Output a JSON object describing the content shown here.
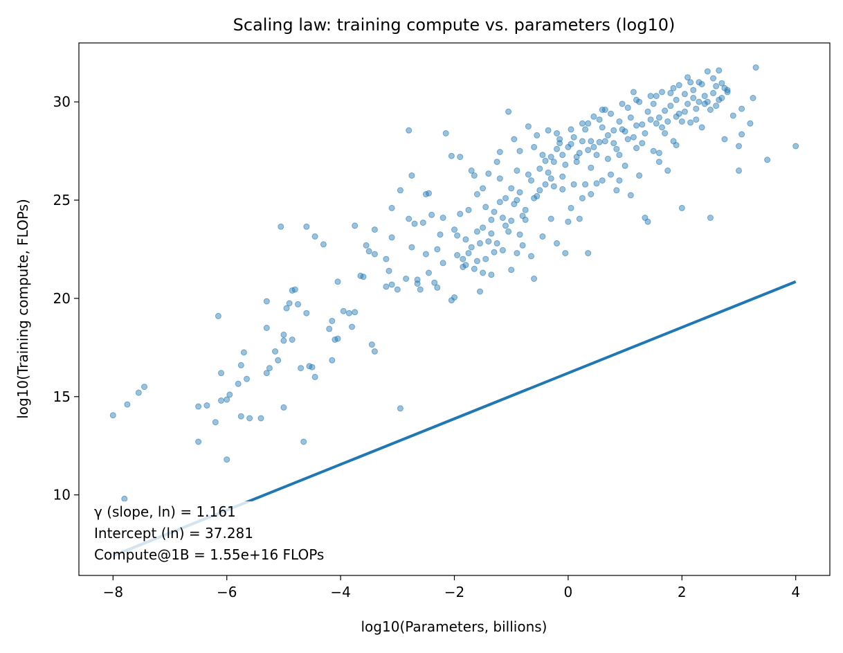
{
  "chart_data": {
    "type": "scatter",
    "title": "Scaling law: training compute vs. parameters (log10)",
    "xlabel": "log10(Parameters, billions)",
    "ylabel": "log10(Training compute, FLOPs)",
    "xlim": [
      -8.6,
      4.6
    ],
    "ylim": [
      5.9,
      33.0
    ],
    "xticks": [
      -8,
      -6,
      -4,
      -2,
      0,
      2,
      4
    ],
    "yticks": [
      10,
      15,
      20,
      25,
      30
    ],
    "xtick_labels": [
      "−8",
      "−6",
      "−4",
      "−2",
      "0",
      "2",
      "4"
    ],
    "ytick_labels": [
      "10",
      "15",
      "20",
      "25",
      "30"
    ],
    "grid": false,
    "legend": "none",
    "point_color": "#1f77b4",
    "line_color": "#1f77b4",
    "fit_line": {
      "x": [
        -8.0,
        4.0
      ],
      "y": [
        6.9,
        20.85
      ]
    },
    "annotations": [
      "γ (slope, ln) = 1.161",
      "Intercept (ln) = 37.281",
      "Compute@1B = 1.55e+16 FLOPs"
    ],
    "points": [
      [
        -8.0,
        14.05
      ],
      [
        -7.75,
        14.6
      ],
      [
        -7.55,
        15.2
      ],
      [
        -7.45,
        15.5
      ],
      [
        -7.8,
        9.8
      ],
      [
        -6.5,
        14.5
      ],
      [
        -6.5,
        12.7
      ],
      [
        -6.35,
        14.55
      ],
      [
        -6.2,
        13.7
      ],
      [
        -6.1,
        14.8
      ],
      [
        -6.0,
        14.85
      ],
      [
        -6.0,
        11.8
      ],
      [
        -5.95,
        15.1
      ],
      [
        -6.1,
        16.2
      ],
      [
        -6.15,
        19.1
      ],
      [
        -5.8,
        15.65
      ],
      [
        -5.75,
        16.6
      ],
      [
        -5.7,
        17.25
      ],
      [
        -5.65,
        15.9
      ],
      [
        -5.6,
        13.9
      ],
      [
        -5.75,
        14.0
      ],
      [
        -5.4,
        13.9
      ],
      [
        -5.3,
        18.5
      ],
      [
        -5.3,
        16.2
      ],
      [
        -5.25,
        16.45
      ],
      [
        -5.3,
        19.85
      ],
      [
        -5.15,
        17.3
      ],
      [
        -5.1,
        16.85
      ],
      [
        -5.05,
        23.65
      ],
      [
        -5.0,
        18.15
      ],
      [
        -5.0,
        17.85
      ],
      [
        -4.95,
        19.5
      ],
      [
        -4.9,
        19.75
      ],
      [
        -4.85,
        20.4
      ],
      [
        -4.85,
        17.9
      ],
      [
        -4.8,
        20.45
      ],
      [
        -4.75,
        19.7
      ],
      [
        -5.0,
        14.45
      ],
      [
        -4.7,
        16.45
      ],
      [
        -4.65,
        12.7
      ],
      [
        -4.55,
        16.55
      ],
      [
        -4.5,
        16.5
      ],
      [
        -4.45,
        16.0
      ],
      [
        -4.6,
        19.25
      ],
      [
        -4.6,
        23.65
      ],
      [
        -4.45,
        23.15
      ],
      [
        -4.3,
        22.75
      ],
      [
        -4.2,
        18.45
      ],
      [
        -4.15,
        18.85
      ],
      [
        -4.1,
        17.9
      ],
      [
        -4.15,
        16.85
      ],
      [
        -4.05,
        17.95
      ],
      [
        -4.05,
        20.85
      ],
      [
        -3.95,
        19.35
      ],
      [
        -3.85,
        19.25
      ],
      [
        -3.8,
        18.55
      ],
      [
        -3.75,
        19.3
      ],
      [
        -3.75,
        23.7
      ],
      [
        -3.65,
        21.15
      ],
      [
        -3.6,
        21.1
      ],
      [
        -3.55,
        22.7
      ],
      [
        -3.5,
        22.4
      ],
      [
        -3.45,
        17.65
      ],
      [
        -3.4,
        17.3
      ],
      [
        -3.4,
        22.25
      ],
      [
        -3.4,
        23.5
      ],
      [
        -3.2,
        20.6
      ],
      [
        -3.2,
        22.0
      ],
      [
        -3.15,
        21.4
      ],
      [
        -3.1,
        20.7
      ],
      [
        -3.1,
        24.6
      ],
      [
        -3.1,
        23.1
      ],
      [
        -3.0,
        20.45
      ],
      [
        -2.95,
        25.5
      ],
      [
        -2.95,
        14.4
      ],
      [
        -2.85,
        21.0
      ],
      [
        -2.8,
        28.55
      ],
      [
        -2.8,
        24.05
      ],
      [
        -2.75,
        26.25
      ],
      [
        -2.75,
        22.6
      ],
      [
        -2.7,
        23.8
      ],
      [
        -2.65,
        20.75
      ],
      [
        -2.65,
        20.95
      ],
      [
        -2.6,
        20.45
      ],
      [
        -2.55,
        23.85
      ],
      [
        -2.5,
        25.3
      ],
      [
        -2.5,
        22.25
      ],
      [
        -2.45,
        25.35
      ],
      [
        -2.45,
        21.3
      ],
      [
        -2.4,
        24.25
      ],
      [
        -2.35,
        20.8
      ],
      [
        -2.3,
        20.55
      ],
      [
        -2.3,
        22.5
      ],
      [
        -2.25,
        23.25
      ],
      [
        -2.2,
        24.1
      ],
      [
        -2.2,
        21.8
      ],
      [
        -2.15,
        28.4
      ],
      [
        -2.05,
        27.25
      ],
      [
        -2.0,
        20.05
      ],
      [
        -2.05,
        19.9
      ],
      [
        -1.95,
        22.2
      ],
      [
        -1.95,
        23.2
      ],
      [
        -1.9,
        27.2
      ],
      [
        -1.85,
        22.0
      ],
      [
        -1.8,
        21.7
      ],
      [
        -1.75,
        24.5
      ],
      [
        -1.7,
        26.5
      ],
      [
        -1.65,
        26.25
      ],
      [
        -1.6,
        25.3
      ],
      [
        -1.6,
        21.9
      ],
      [
        -1.55,
        20.35
      ],
      [
        -1.5,
        21.3
      ],
      [
        -1.45,
        24.65
      ],
      [
        -1.4,
        26.35
      ],
      [
        -1.35,
        24.0
      ],
      [
        -1.35,
        21.2
      ],
      [
        -1.3,
        22.35
      ],
      [
        -1.25,
        26.95
      ],
      [
        -1.2,
        27.45
      ],
      [
        -1.15,
        22.45
      ],
      [
        -1.1,
        25.1
      ],
      [
        -1.05,
        29.5
      ],
      [
        -1.0,
        21.45
      ],
      [
        -1.0,
        23.95
      ],
      [
        -0.95,
        28.1
      ],
      [
        -0.9,
        22.3
      ],
      [
        -0.85,
        23.25
      ],
      [
        -0.85,
        27.5
      ],
      [
        -0.8,
        22.7
      ],
      [
        -0.75,
        24.5
      ],
      [
        -0.7,
        28.75
      ],
      [
        -0.65,
        22.15
      ],
      [
        -0.6,
        21.0
      ],
      [
        -0.55,
        28.3
      ],
      [
        -0.5,
        25.5
      ],
      [
        -0.45,
        23.15
      ],
      [
        -0.4,
        25.8
      ],
      [
        -0.35,
        28.55
      ],
      [
        -0.3,
        24.05
      ],
      [
        -0.25,
        26.95
      ],
      [
        -0.2,
        22.8
      ],
      [
        -0.15,
        28.1
      ],
      [
        -0.1,
        26.2
      ],
      [
        -0.05,
        22.3
      ],
      [
        -0.1,
        25.55
      ],
      [
        0.0,
        23.9
      ],
      [
        0.05,
        24.6
      ],
      [
        0.05,
        27.85
      ],
      [
        0.1,
        25.8
      ],
      [
        0.15,
        26.95
      ],
      [
        0.2,
        24.05
      ],
      [
        0.25,
        25.1
      ],
      [
        0.25,
        28.9
      ],
      [
        0.3,
        25.8
      ],
      [
        0.35,
        22.3
      ],
      [
        0.35,
        27.55
      ],
      [
        0.4,
        26.65
      ],
      [
        0.45,
        29.25
      ],
      [
        0.5,
        25.85
      ],
      [
        0.55,
        27.95
      ],
      [
        0.6,
        26.0
      ],
      [
        0.65,
        29.6
      ],
      [
        0.7,
        27.1
      ],
      [
        0.75,
        26.3
      ],
      [
        0.8,
        28.55
      ],
      [
        0.85,
        25.5
      ],
      [
        0.9,
        26.0
      ],
      [
        0.95,
        29.9
      ],
      [
        1.0,
        26.75
      ],
      [
        1.05,
        28.1
      ],
      [
        1.1,
        25.25
      ],
      [
        1.15,
        30.5
      ],
      [
        1.2,
        27.65
      ],
      [
        1.25,
        26.25
      ],
      [
        1.3,
        28.85
      ],
      [
        1.35,
        24.1
      ],
      [
        1.4,
        23.9
      ],
      [
        1.45,
        29.1
      ],
      [
        1.5,
        27.5
      ],
      [
        1.55,
        30.3
      ],
      [
        1.6,
        26.95
      ],
      [
        1.65,
        28.7
      ],
      [
        1.7,
        29.55
      ],
      [
        1.75,
        26.5
      ],
      [
        1.8,
        30.45
      ],
      [
        1.85,
        28.0
      ],
      [
        1.9,
        29.25
      ],
      [
        1.95,
        30.85
      ],
      [
        2.0,
        24.6
      ],
      [
        2.05,
        29.5
      ],
      [
        2.1,
        31.25
      ],
      [
        2.15,
        28.95
      ],
      [
        2.2,
        30.2
      ],
      [
        2.25,
        29.65
      ],
      [
        2.3,
        31.0
      ],
      [
        2.35,
        28.7
      ],
      [
        2.4,
        29.9
      ],
      [
        2.45,
        31.55
      ],
      [
        2.5,
        24.1
      ],
      [
        2.55,
        30.45
      ],
      [
        2.6,
        29.8
      ],
      [
        2.65,
        31.6
      ],
      [
        2.7,
        30.95
      ],
      [
        2.75,
        28.1
      ],
      [
        2.8,
        30.5
      ],
      [
        3.0,
        27.75
      ],
      [
        3.0,
        26.5
      ],
      [
        3.05,
        29.65
      ],
      [
        3.05,
        28.35
      ],
      [
        3.2,
        28.9
      ],
      [
        3.25,
        30.2
      ],
      [
        3.3,
        31.75
      ],
      [
        3.5,
        27.05
      ],
      [
        4.0,
        27.75
      ],
      [
        -1.8,
        23.0
      ],
      [
        -1.7,
        22.6
      ],
      [
        -1.6,
        23.4
      ],
      [
        -1.5,
        23.6
      ],
      [
        -1.4,
        22.9
      ],
      [
        -1.3,
        24.4
      ],
      [
        -1.2,
        24.9
      ],
      [
        -1.1,
        23.7
      ],
      [
        -1.0,
        25.6
      ],
      [
        -0.9,
        25.0
      ],
      [
        -0.8,
        24.2
      ],
      [
        -0.7,
        26.3
      ],
      [
        -0.6,
        25.1
      ],
      [
        -0.5,
        26.6
      ],
      [
        -0.4,
        27.0
      ],
      [
        -0.3,
        26.1
      ],
      [
        -0.2,
        27.6
      ],
      [
        -0.1,
        27.3
      ],
      [
        0.0,
        27.7
      ],
      [
        0.1,
        28.2
      ],
      [
        0.2,
        27.4
      ],
      [
        0.3,
        28.6
      ],
      [
        0.4,
        28.0
      ],
      [
        0.5,
        27.3
      ],
      [
        0.6,
        28.7
      ],
      [
        0.7,
        28.3
      ],
      [
        0.8,
        27.9
      ],
      [
        0.9,
        29.0
      ],
      [
        1.0,
        28.5
      ],
      [
        1.1,
        29.2
      ],
      [
        1.2,
        28.8
      ],
      [
        1.3,
        27.9
      ],
      [
        1.4,
        29.5
      ],
      [
        1.5,
        29.9
      ],
      [
        1.6,
        29.2
      ],
      [
        1.7,
        28.4
      ],
      [
        1.8,
        29.8
      ],
      [
        1.9,
        30.1
      ],
      [
        2.0,
        29.0
      ],
      [
        2.1,
        29.9
      ],
      [
        2.2,
        30.6
      ],
      [
        2.3,
        30.0
      ],
      [
        2.4,
        30.3
      ],
      [
        2.5,
        29.6
      ],
      [
        2.6,
        30.8
      ],
      [
        2.7,
        30.2
      ],
      [
        2.8,
        30.6
      ],
      [
        2.9,
        29.3
      ],
      [
        -1.85,
        21.6
      ],
      [
        -1.75,
        22.3
      ],
      [
        -1.65,
        21.5
      ],
      [
        -1.55,
        22.8
      ],
      [
        -1.45,
        22.0
      ],
      [
        -1.35,
        23.3
      ],
      [
        -1.25,
        22.8
      ],
      [
        -1.15,
        24.1
      ],
      [
        -1.05,
        23.4
      ],
      [
        -0.95,
        24.8
      ],
      [
        -0.85,
        25.4
      ],
      [
        -0.75,
        24.0
      ],
      [
        -0.65,
        26.0
      ],
      [
        -0.55,
        25.2
      ],
      [
        -0.45,
        27.3
      ],
      [
        -0.35,
        26.4
      ],
      [
        -0.25,
        25.7
      ],
      [
        -0.15,
        27.9
      ],
      [
        -0.05,
        26.8
      ],
      [
        0.05,
        28.6
      ],
      [
        0.15,
        27.2
      ],
      [
        0.25,
        28.0
      ],
      [
        0.35,
        28.9
      ],
      [
        0.45,
        27.7
      ],
      [
        0.55,
        29.1
      ],
      [
        0.65,
        28.0
      ],
      [
        0.75,
        29.4
      ],
      [
        0.85,
        27.6
      ],
      [
        0.95,
        28.6
      ],
      [
        1.05,
        29.7
      ],
      [
        1.15,
        28.2
      ],
      [
        1.25,
        30.0
      ],
      [
        1.35,
        28.4
      ],
      [
        1.45,
        30.3
      ],
      [
        1.55,
        28.9
      ],
      [
        1.65,
        30.5
      ],
      [
        1.75,
        29.0
      ],
      [
        1.85,
        30.7
      ],
      [
        1.95,
        29.4
      ],
      [
        2.05,
        30.4
      ],
      [
        2.15,
        31.0
      ],
      [
        2.25,
        29.1
      ],
      [
        2.35,
        30.9
      ],
      [
        2.45,
        30.0
      ],
      [
        2.55,
        31.2
      ],
      [
        2.65,
        30.1
      ],
      [
        2.75,
        30.7
      ],
      [
        -2.0,
        23.5
      ],
      [
        -1.9,
        24.3
      ],
      [
        -1.2,
        26.1
      ],
      [
        -0.6,
        27.7
      ],
      [
        -0.3,
        27.2
      ],
      [
        0.4,
        25.3
      ],
      [
        0.9,
        27.3
      ],
      [
        1.6,
        27.4
      ],
      [
        -1.5,
        25.6
      ],
      [
        -0.9,
        26.5
      ],
      [
        -0.2,
        28.4
      ],
      [
        0.6,
        29.6
      ],
      [
        1.2,
        30.1
      ],
      [
        1.9,
        27.8
      ]
    ]
  }
}
